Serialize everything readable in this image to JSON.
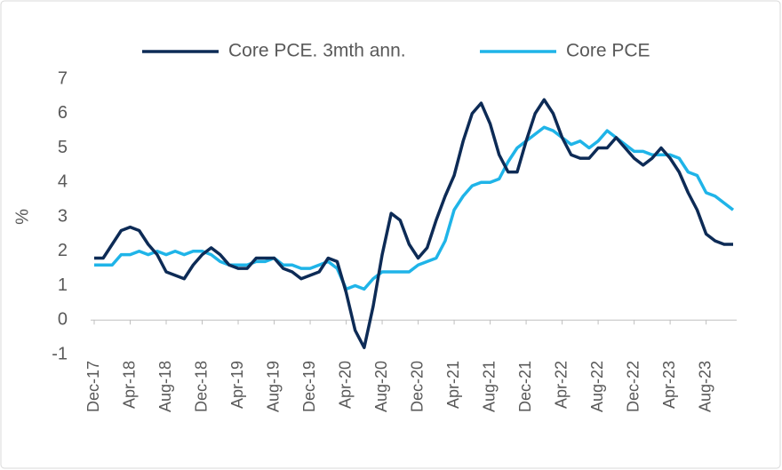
{
  "chart_data": {
    "type": "line",
    "y_label": "%",
    "categories": [
      "Dec-17",
      null,
      null,
      null,
      "Apr-18",
      null,
      null,
      null,
      "Aug-18",
      null,
      null,
      null,
      "Dec-18",
      null,
      null,
      null,
      "Apr-19",
      null,
      null,
      null,
      "Aug-19",
      null,
      null,
      null,
      "Dec-19",
      null,
      null,
      null,
      "Apr-20",
      null,
      null,
      null,
      "Aug-20",
      null,
      null,
      null,
      "Dec-20",
      null,
      null,
      null,
      "Apr-21",
      null,
      null,
      null,
      "Aug-21",
      null,
      null,
      null,
      "Dec-21",
      null,
      null,
      null,
      "Apr-22",
      null,
      null,
      null,
      "Aug-22",
      null,
      null,
      null,
      "Dec-22",
      null,
      null,
      null,
      "Apr-23",
      null,
      null,
      null,
      "Aug-23",
      null,
      null,
      null
    ],
    "series": [
      {
        "name": "Core PCE. 3mth ann.",
        "color": "#0d2b56",
        "values": [
          1.8,
          1.8,
          2.2,
          2.6,
          2.7,
          2.6,
          2.2,
          1.9,
          1.4,
          1.3,
          1.2,
          1.6,
          1.9,
          2.1,
          1.9,
          1.6,
          1.5,
          1.5,
          1.8,
          1.8,
          1.8,
          1.5,
          1.4,
          1.2,
          1.3,
          1.4,
          1.8,
          1.7,
          0.8,
          -0.3,
          -0.8,
          0.4,
          1.9,
          3.1,
          2.9,
          2.2,
          1.8,
          2.1,
          2.9,
          3.6,
          4.2,
          5.2,
          6.0,
          6.3,
          5.7,
          4.8,
          4.3,
          4.3,
          5.2,
          6.0,
          6.4,
          6.0,
          5.3,
          4.8,
          4.7,
          4.7,
          5.0,
          5.0,
          5.3,
          5.0,
          4.7,
          4.5,
          4.7,
          5.0,
          4.7,
          4.3,
          3.7,
          3.2,
          2.5,
          2.3,
          2.2,
          2.2
        ]
      },
      {
        "name": "Core PCE",
        "color": "#1fb4e8",
        "values": [
          1.6,
          1.6,
          1.6,
          1.9,
          1.9,
          2.0,
          1.9,
          2.0,
          1.9,
          2.0,
          1.9,
          2.0,
          2.0,
          1.9,
          1.7,
          1.6,
          1.6,
          1.6,
          1.7,
          1.7,
          1.8,
          1.6,
          1.6,
          1.5,
          1.5,
          1.6,
          1.7,
          1.5,
          0.9,
          1.0,
          0.9,
          1.2,
          1.4,
          1.4,
          1.4,
          1.4,
          1.6,
          1.7,
          1.8,
          2.3,
          3.2,
          3.6,
          3.9,
          4.0,
          4.0,
          4.1,
          4.6,
          5.0,
          5.2,
          5.4,
          5.6,
          5.5,
          5.3,
          5.1,
          5.2,
          5.0,
          5.2,
          5.5,
          5.3,
          5.1,
          4.9,
          4.9,
          4.8,
          4.8,
          4.8,
          4.7,
          4.3,
          4.2,
          3.7,
          3.6,
          3.4,
          3.2
        ]
      }
    ],
    "ylim": [
      -1,
      7
    ],
    "yticks": [
      -1,
      0,
      1,
      2,
      3,
      4,
      5,
      6,
      7
    ],
    "grid": false,
    "legend": "top"
  }
}
